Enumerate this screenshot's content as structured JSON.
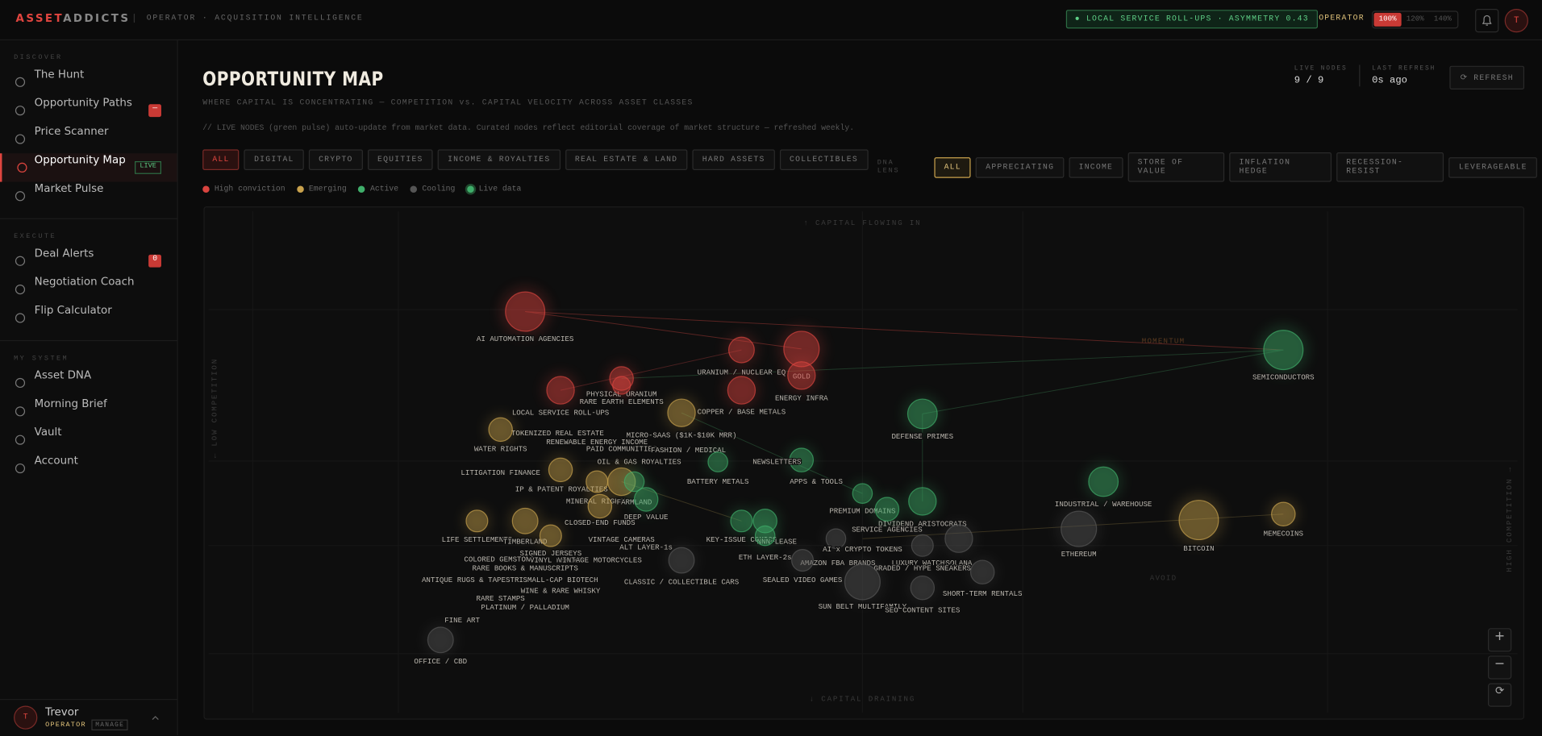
{
  "brand": {
    "a": "ASSET",
    "b": "ADDICTS",
    "tagline": "OPERATOR · ACQUISITION INTELLIGENCE"
  },
  "topbar": {
    "signal": "● LOCAL SERVICE ROLL-UPS · ASYMMETRY 0.43",
    "role": "OPERATOR",
    "zoom": [
      "100%",
      "120%",
      "140%"
    ],
    "avatar": "T"
  },
  "sidebar": [
    {
      "title": "DISCOVER",
      "items": [
        {
          "label": "The Hunt"
        },
        {
          "label": "Opportunity Paths",
          "badge": "—"
        },
        {
          "label": "Price Scanner"
        },
        {
          "label": "Opportunity Map",
          "tag": "LIVE",
          "active": true
        },
        {
          "label": "Market Pulse"
        }
      ]
    },
    {
      "title": "EXECUTE",
      "items": [
        {
          "label": "Deal Alerts",
          "badge": "0"
        },
        {
          "label": "Negotiation Coach"
        },
        {
          "label": "Flip Calculator"
        }
      ]
    },
    {
      "title": "MY SYSTEM",
      "items": [
        {
          "label": "Asset DNA"
        },
        {
          "label": "Morning Brief"
        },
        {
          "label": "Vault"
        },
        {
          "label": "Account"
        }
      ]
    }
  ],
  "user": {
    "avatar": "T",
    "name": "Trevor",
    "role": "OPERATOR",
    "manage": "MANAGE"
  },
  "header": {
    "title": "OPPORTUNITY MAP",
    "subtitle": "WHERE CAPITAL IS CONCENTRATING — COMPETITION vs. CAPITAL VELOCITY ACROSS ASSET CLASSES",
    "note": "// LIVE NODES (green pulse) auto-update from market data. Curated nodes reflect editorial coverage of market structure — refreshed weekly.",
    "stats": [
      {
        "label": "LIVE NODES",
        "value": "9 / 9"
      },
      {
        "label": "LAST REFRESH",
        "value": "0s ago"
      }
    ],
    "refresh": "REFRESH"
  },
  "filters": [
    "ALL",
    "DIGITAL",
    "CRYPTO",
    "EQUITIES",
    "INCOME & ROYALTIES",
    "REAL ESTATE & LAND",
    "HARD ASSETS",
    "COLLECTIBLES"
  ],
  "dna_lens": {
    "label": "DNA LENS",
    "options": [
      "ALL",
      "APPRECIATING",
      "INCOME",
      "STORE OF VALUE",
      "INFLATION HEDGE",
      "RECESSION-RESIST",
      "LEVERAGEABLE"
    ]
  },
  "legend": [
    {
      "label": "High conviction",
      "color": "#d9443f"
    },
    {
      "label": "Emerging",
      "color": "#c9a24d"
    },
    {
      "label": "Active",
      "color": "#3fae6a"
    },
    {
      "label": "Cooling",
      "color": "#555555"
    },
    {
      "label": "Live data",
      "color": "#3fae6a"
    }
  ],
  "map": {
    "top": "↑ CAPITAL FLOWING IN",
    "bottom": "↓ CAPITAL DRAINING",
    "left": "← LOW COMPETITION",
    "right": "HIGH COMPETITION →",
    "momentum": "MOMENTUM",
    "avoid": "AVOID",
    "nodes": [
      {
        "label": "AI AUTOMATION AGENCIES",
        "color": "#d9443f"
      },
      {
        "label": "URANIUM / NUCLEAR EQ",
        "color": "#d9443f"
      },
      {
        "label": "GOLD",
        "color": "#d9443f"
      },
      {
        "label": "ENERGY INFRA",
        "color": "#d9443f"
      },
      {
        "label": "SEMICONDUCTORS",
        "color": "#3fae6a"
      },
      {
        "label": "PHYSICAL URANIUM",
        "color": "#d9443f"
      },
      {
        "label": "RARE EARTH ELEMENTS",
        "color": "#d9443f"
      },
      {
        "label": "LOCAL SERVICE ROLL-UPS",
        "color": "#d9443f"
      },
      {
        "label": "COPPER / BASE METALS",
        "color": "#d9443f"
      },
      {
        "label": "DEFENSE PRIMES",
        "color": "#3fae6a"
      },
      {
        "label": "TOKENIZED REAL ESTATE",
        "color": "#c9a24d"
      },
      {
        "label": "MICRO-SAAS ($1K-$10K MRR)",
        "color": "#c9a24d"
      },
      {
        "label": "RENEWABLE ENERGY INCOME",
        "color": "#c9a24d"
      },
      {
        "label": "WATER RIGHTS",
        "color": "#c9a24d"
      },
      {
        "label": "PAID COMMUNITIES",
        "color": "#c9a24d"
      },
      {
        "label": "FASHION / MEDICAL",
        "color": "#3fae6a"
      },
      {
        "label": "NEWSLETTERS",
        "color": "#3fae6a"
      },
      {
        "label": "OIL & GAS ROYALTIES",
        "color": "#c9a24d"
      },
      {
        "label": "LITIGATION FINANCE",
        "color": "#c9a24d"
      },
      {
        "label": "BATTERY METALS",
        "color": "#3fae6a"
      },
      {
        "label": "APPS & TOOLS",
        "color": "#3fae6a"
      },
      {
        "label": "IP & PATENT ROYALTIES",
        "color": "#c9a24d"
      },
      {
        "label": "MINERAL RIGHTS",
        "color": "#c9a24d"
      },
      {
        "label": "FARMLAND",
        "color": "#3fae6a"
      },
      {
        "label": "INDUSTRIAL / WAREHOUSE",
        "color": "#3fae6a"
      },
      {
        "label": "PREMIUM DOMAINS",
        "color": "#3fae6a"
      },
      {
        "label": "DEEP VALUE",
        "color": "#3fae6a"
      },
      {
        "label": "CLOSED-END FUNDS",
        "color": "#c9a24d"
      },
      {
        "label": "DIVIDEND ARISTOCRATS",
        "color": "#3fae6a"
      },
      {
        "label": "SERVICE AGENCIES",
        "color": "#3fae6a"
      },
      {
        "label": "ETHEREUM",
        "color": "#555555"
      },
      {
        "label": "BITCOIN",
        "color": "#c9a24d"
      },
      {
        "label": "MEMECOINS",
        "color": "#c9a24d"
      },
      {
        "label": "LIFE SETTLEMENTS",
        "color": "#c9a24d"
      },
      {
        "label": "TIMBERLAND",
        "color": "#c9a24d"
      },
      {
        "label": "VINTAGE CAMERAS",
        "color": "#c9a24d"
      },
      {
        "label": "KEY-ISSUE COMICS",
        "color": "#3fae6a"
      },
      {
        "label": "NNN LEASE",
        "color": "#3fae6a"
      },
      {
        "label": "ALT LAYER-1s",
        "color": "#555555"
      },
      {
        "label": "AI x CRYPTO TOKENS",
        "color": "#555555"
      },
      {
        "label": "SIGNED JERSEYS",
        "color": "#c9a24d"
      },
      {
        "label": "COLORED GEMSTONES",
        "color": "#555555"
      },
      {
        "label": "VINYL RECORDS",
        "color": "#c9a24d"
      },
      {
        "label": "VINTAGE MOTORCYCLES",
        "color": "#c9a24d"
      },
      {
        "label": "ETH LAYER-2s",
        "color": "#3fae6a"
      },
      {
        "label": "AMAZON FBA BRANDS",
        "color": "#555555"
      },
      {
        "label": "LUXURY WATCHES",
        "color": "#555555"
      },
      {
        "label": "SOLANA",
        "color": "#555555"
      },
      {
        "label": "GRADED / HYPE SNEAKERS",
        "color": "#555555"
      },
      {
        "label": "RARE BOOKS & MANUSCRIPTS",
        "color": "#555555"
      },
      {
        "label": "ANTIQUE RUGS & TAPESTRIES",
        "color": "#555555"
      },
      {
        "label": "SMALL-CAP BIOTECH",
        "color": "#555555"
      },
      {
        "label": "CLASSIC / COLLECTIBLE CARS",
        "color": "#555555"
      },
      {
        "label": "SEALED VIDEO GAMES",
        "color": "#555555"
      },
      {
        "label": "SHORT-TERM RENTALS",
        "color": "#555555"
      },
      {
        "label": "WINE & RARE WHISKY",
        "color": "#555555"
      },
      {
        "label": "RARE STAMPS",
        "color": "#555555"
      },
      {
        "label": "SUN BELT MULTIFAMILY",
        "color": "#555555"
      },
      {
        "label": "PLATINUM / PALLADIUM",
        "color": "#555555"
      },
      {
        "label": "SEO CONTENT SITES",
        "color": "#555555"
      },
      {
        "label": "FINE ART",
        "color": "#555555"
      },
      {
        "label": "OFFICE / CBD",
        "color": "#555555"
      }
    ]
  }
}
